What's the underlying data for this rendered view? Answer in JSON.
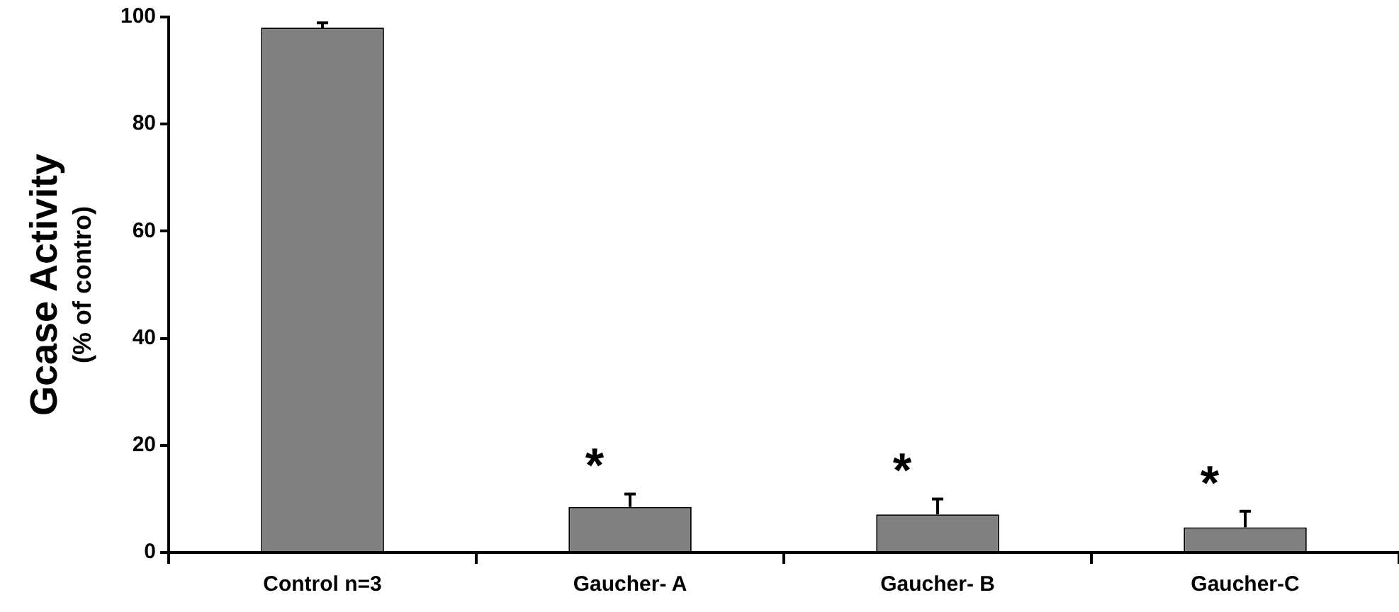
{
  "chart_data": {
    "type": "bar",
    "ylabel": "Gcase Activity\n(% of contro)",
    "categories": [
      "Control n=3",
      "Gaucher- A",
      "Gaucher- B",
      "Gaucher-C"
    ],
    "values": [
      98,
      8.5,
      7.1,
      4.7
    ],
    "errors": [
      [
        98,
        98.9
      ],
      [
        8.5,
        10.9
      ],
      [
        7.1,
        10.0
      ],
      [
        4.7,
        7.7
      ]
    ],
    "color": "#808080",
    "ylim": [
      0,
      100
    ],
    "yticks": [
      0,
      20,
      40,
      60,
      80,
      100
    ],
    "grid": false,
    "legend": false,
    "annotations": [
      "*",
      "*",
      "*"
    ]
  }
}
